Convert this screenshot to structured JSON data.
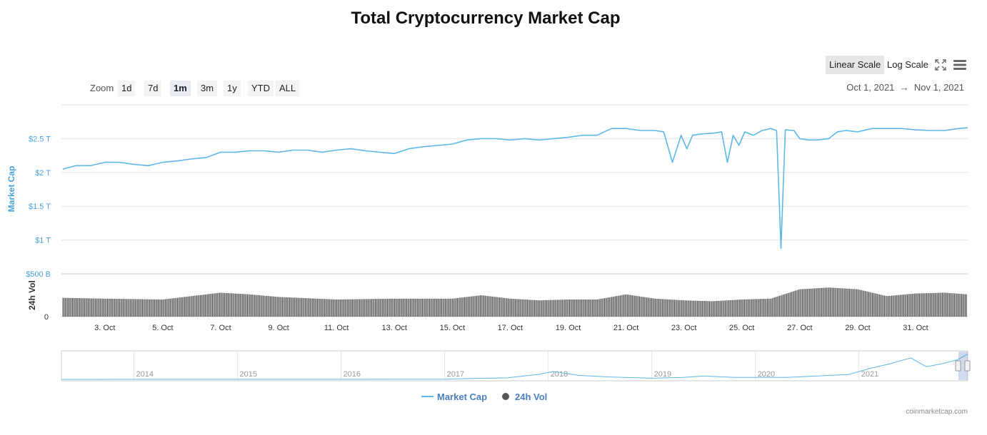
{
  "header": {
    "title": "Total Cryptocurrency Market Cap"
  },
  "scale": {
    "linear_label": "Linear Scale",
    "log_label": "Log Scale",
    "active": "linear"
  },
  "icons": {
    "fullscreen": "fullscreen-icon",
    "menu": "hamburger-menu-icon"
  },
  "zoom": {
    "label": "Zoom",
    "buttons": [
      "1d",
      "7d",
      "1m",
      "3m",
      "1y",
      "YTD",
      "ALL"
    ],
    "active": "1m"
  },
  "range": {
    "from": "Oct 1, 2021",
    "arrow": "→",
    "to": "Nov 1, 2021"
  },
  "legend": {
    "market_cap": "Market Cap",
    "volume": "24h Vol"
  },
  "credits": "coinmarketcap.com",
  "colors": {
    "market_cap": "#5eb8e8",
    "volume": "#555555",
    "axis_label": "#4aa3df"
  },
  "chart_data": {
    "type": "line",
    "title": "Total Cryptocurrency Market Cap",
    "market_cap": {
      "ylabel": "Market Cap",
      "yticks": [
        "$2.5 T",
        "$2 T",
        "$1.5 T",
        "$1 T",
        "$500 B"
      ],
      "ylim_trillions": [
        0.5,
        3.0
      ],
      "x_days": [
        1.55,
        2,
        2.5,
        3,
        3.5,
        4,
        4.5,
        5,
        5.5,
        6,
        6.5,
        7,
        7.5,
        8,
        8.5,
        9,
        9.5,
        10,
        10.5,
        11,
        11.5,
        12,
        12.5,
        13,
        13.5,
        14,
        14.5,
        15,
        15.5,
        16,
        16.5,
        17,
        17.5,
        18,
        18.5,
        19,
        19.5,
        20,
        20.5,
        21,
        21.5,
        22,
        22.3,
        22.6,
        22.9,
        23.1,
        23.3,
        23.6,
        24,
        24.3,
        24.5,
        24.7,
        24.9,
        25.1,
        25.4,
        25.7,
        26,
        26.2,
        26.35,
        26.5,
        26.8,
        27,
        27.3,
        27.6,
        28,
        28.3,
        28.6,
        29,
        29.5,
        30,
        30.5,
        31,
        31.5,
        32,
        32.5,
        32.8
      ],
      "values_trillions": [
        2.05,
        2.1,
        2.1,
        2.15,
        2.15,
        2.12,
        2.1,
        2.15,
        2.17,
        2.2,
        2.22,
        2.3,
        2.3,
        2.32,
        2.32,
        2.3,
        2.33,
        2.33,
        2.3,
        2.33,
        2.35,
        2.32,
        2.3,
        2.28,
        2.35,
        2.38,
        2.4,
        2.42,
        2.48,
        2.5,
        2.5,
        2.48,
        2.5,
        2.48,
        2.5,
        2.52,
        2.55,
        2.55,
        2.65,
        2.65,
        2.62,
        2.62,
        2.6,
        2.15,
        2.55,
        2.35,
        2.55,
        2.57,
        2.58,
        2.6,
        2.15,
        2.55,
        2.4,
        2.6,
        2.55,
        2.62,
        2.65,
        2.62,
        0.88,
        2.63,
        2.62,
        2.5,
        2.48,
        2.48,
        2.5,
        2.6,
        2.62,
        2.6,
        2.65,
        2.65,
        2.65,
        2.63,
        2.62,
        2.62,
        2.65,
        2.66
      ]
    },
    "volume": {
      "ylabel": "24h Vol",
      "yticks": [
        "0"
      ],
      "ylim_billions": [
        0,
        250
      ],
      "x_days": [
        1.55,
        3,
        5,
        7,
        8,
        9,
        11,
        13,
        15,
        16,
        17,
        18,
        19,
        20,
        21,
        22,
        23,
        24,
        25,
        26,
        27,
        28,
        29,
        30,
        31,
        32,
        32.8
      ],
      "values_billions": [
        110,
        105,
        100,
        140,
        130,
        115,
        100,
        105,
        105,
        125,
        105,
        95,
        100,
        100,
        130,
        105,
        95,
        90,
        100,
        105,
        160,
        170,
        160,
        120,
        135,
        140,
        130
      ]
    },
    "x_ticks": [
      "3. Oct",
      "5. Oct",
      "7. Oct",
      "9. Oct",
      "11. Oct",
      "13. Oct",
      "15. Oct",
      "17. Oct",
      "19. Oct",
      "21. Oct",
      "23. Oct",
      "25. Oct",
      "27. Oct",
      "29. Oct",
      "31. Oct"
    ],
    "x_tick_days": [
      3,
      5,
      7,
      9,
      11,
      13,
      15,
      17,
      19,
      21,
      23,
      25,
      27,
      29,
      31
    ],
    "x_range_days": [
      1.55,
      32.8
    ],
    "navigator": {
      "year_labels": [
        "2014",
        "2015",
        "2016",
        "2017",
        "2018",
        "2019",
        "2020",
        "2021"
      ],
      "x_years": [
        2013.3,
        2014,
        2015,
        2016,
        2016.5,
        2017,
        2017.3,
        2017.6,
        2017.9,
        2018.05,
        2018.3,
        2018.6,
        2019,
        2019.3,
        2019.5,
        2019.8,
        2020,
        2020.3,
        2020.6,
        2020.9,
        2021.1,
        2021.3,
        2021.5,
        2021.65,
        2021.8,
        2021.95,
        2022.05
      ],
      "values_trillions": [
        0.002,
        0.01,
        0.007,
        0.01,
        0.02,
        0.02,
        0.1,
        0.15,
        0.5,
        0.8,
        0.4,
        0.25,
        0.12,
        0.2,
        0.35,
        0.2,
        0.2,
        0.2,
        0.35,
        0.5,
        1.1,
        1.6,
        2.2,
        1.3,
        1.6,
        2.0,
        2.6
      ]
    }
  }
}
